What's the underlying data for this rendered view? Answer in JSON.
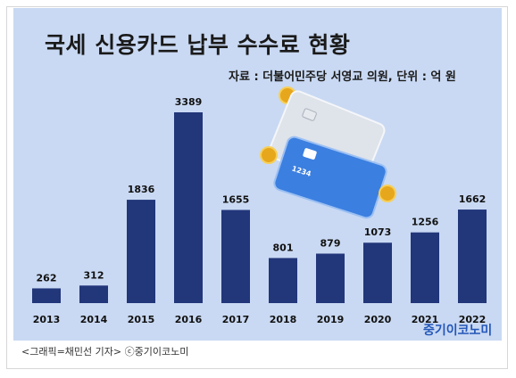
{
  "chart_data": {
    "type": "bar",
    "title": "국세 신용카드 납부 수수료 현황",
    "source": "자료 : 더불어민주당 서영교 의원, 단위 : 억 원",
    "categories": [
      "2013",
      "2014",
      "2015",
      "2016",
      "2017",
      "2018",
      "2019",
      "2020",
      "2021",
      "2022"
    ],
    "values": [
      262,
      312,
      1836,
      3389,
      1655,
      801,
      879,
      1073,
      1256,
      1662
    ],
    "ylim": [
      0,
      3389
    ],
    "bar_color": "#22367a",
    "background_color": "#c9d9f3"
  },
  "illustration": {
    "card_number_text": "1234"
  },
  "brand": "중기이코노미",
  "caption": "<그래픽=채민선 기자>   ⓒ중기이코노미"
}
